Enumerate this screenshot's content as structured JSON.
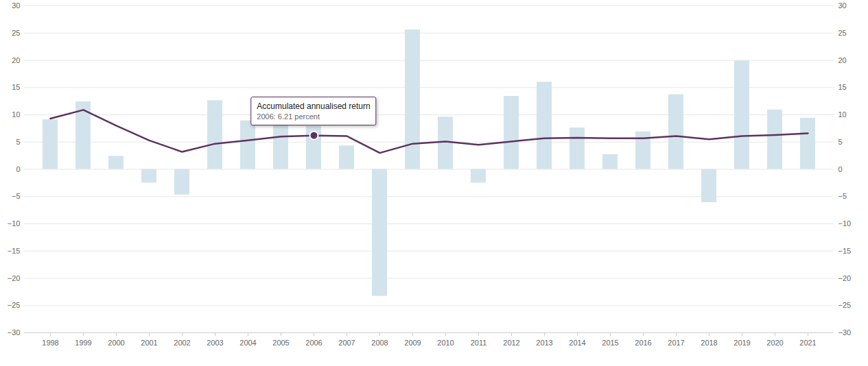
{
  "chart_data": {
    "type": "bar",
    "categories": [
      "1998",
      "1999",
      "2000",
      "2001",
      "2002",
      "2003",
      "2004",
      "2005",
      "2006",
      "2007",
      "2008",
      "2009",
      "2010",
      "2011",
      "2012",
      "2013",
      "2014",
      "2015",
      "2016",
      "2017",
      "2018",
      "2019",
      "2020",
      "2021"
    ],
    "series": [
      {
        "type": "bar",
        "color": "#d3e3eb",
        "values": [
          9.1,
          12.4,
          2.4,
          -2.5,
          -4.7,
          12.6,
          8.9,
          11.1,
          7.9,
          4.3,
          -23.3,
          25.6,
          9.6,
          -2.5,
          13.4,
          16.0,
          7.6,
          2.7,
          6.9,
          13.7,
          -6.1,
          19.9,
          10.9,
          9.4
        ]
      },
      {
        "type": "line",
        "name": "Accumulated annualised return",
        "color": "#5c3360",
        "values": [
          9.3,
          10.9,
          8.0,
          5.3,
          3.2,
          4.7,
          5.3,
          6.0,
          6.21,
          6.1,
          3.0,
          4.7,
          5.1,
          4.5,
          5.1,
          5.7,
          5.8,
          5.7,
          5.7,
          6.1,
          5.5,
          6.1,
          6.3,
          6.6
        ]
      }
    ],
    "annotations": [
      {
        "x": "2006",
        "y": 6.21,
        "lines": [
          "Accumulated annualised return",
          "2006: 6.21 percent"
        ]
      }
    ],
    "ylim": [
      -30,
      30
    ],
    "yticks": [
      -30,
      -25,
      -20,
      -15,
      -10,
      -5,
      0,
      5,
      10,
      15,
      20,
      25,
      30
    ],
    "y2lim": [
      -30,
      30
    ],
    "y2ticks": [
      -30,
      -25,
      -20,
      -15,
      -10,
      -5,
      0,
      5,
      10,
      15,
      20,
      25,
      30
    ],
    "grid": true
  }
}
